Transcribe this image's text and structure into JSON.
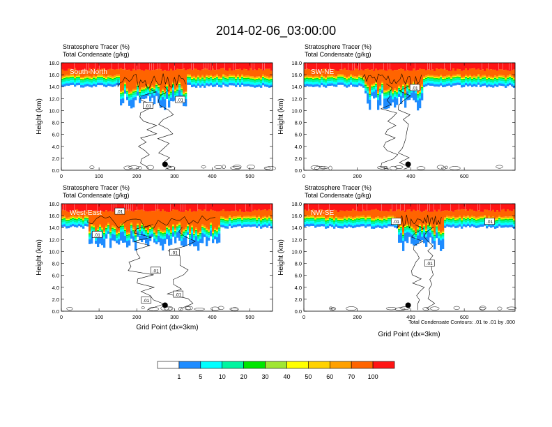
{
  "title": "2014-02-06_03:00:00",
  "label_line1": "Stratosphere Tracer   (%)",
  "label_line2": "Total Condensate   (g/kg)",
  "ylabel": "Height (km)",
  "xlabel": "Grid Point (dx=3km)",
  "contour_note": "Total Condensate Contours: .01 to .01 by .000",
  "contour_label": ".01",
  "y_ticks": [
    "0.0",
    "2.0",
    "4.0",
    "6.0",
    "8.0",
    "10.0",
    "12.0",
    "14.0",
    "16.0",
    "18.0"
  ],
  "colorbar": {
    "colors": [
      "#ffffff",
      "#1e8cff",
      "#00ffff",
      "#00f5a0",
      "#00e600",
      "#a0e632",
      "#ffff00",
      "#ffd200",
      "#ffa000",
      "#ff6400",
      "#ff1414"
    ],
    "labels": [
      "1",
      "5",
      "10",
      "20",
      "30",
      "40",
      "50",
      "60",
      "70",
      "100"
    ]
  },
  "chart_data": [
    {
      "type": "heatmap",
      "panel": "South-North",
      "title": "South-North",
      "xlim": [
        0,
        560
      ],
      "ylim": [
        0,
        18
      ],
      "x_ticks": [
        "0",
        "100",
        "200",
        "300",
        "400",
        "500"
      ],
      "tropopause_km": 15.5,
      "dip_x": [
        150,
        330
      ],
      "point_x": 275,
      "point_y_km": 1.0,
      "contour_labels": [
        {
          "x": 230,
          "y": 10.8
        },
        {
          "x": 315,
          "y": 11.8
        }
      ]
    },
    {
      "type": "heatmap",
      "panel": "SW-NE",
      "title": "SW-NE",
      "xlim": [
        0,
        790
      ],
      "ylim": [
        0,
        18
      ],
      "x_ticks": [
        "0",
        "200",
        "400",
        "600"
      ],
      "tropopause_km": 15.5,
      "dip_x": [
        220,
        440
      ],
      "point_x": 390,
      "point_y_km": 1.0,
      "contour_labels": [
        {
          "x": 415,
          "y": 13.8
        }
      ]
    },
    {
      "type": "heatmap",
      "panel": "West-East",
      "title": "West-East",
      "xlim": [
        0,
        560
      ],
      "ylim": [
        0,
        18
      ],
      "x_ticks": [
        "0",
        "100",
        "200",
        "300",
        "400",
        "500"
      ],
      "tropopause_km": 15.5,
      "dip_x": [
        70,
        420
      ],
      "point_x": 275,
      "point_y_km": 1.0,
      "contour_labels": [
        {
          "x": 155,
          "y": 16.7
        },
        {
          "x": 95,
          "y": 12.8
        },
        {
          "x": 300,
          "y": 9.8
        },
        {
          "x": 250,
          "y": 6.8
        },
        {
          "x": 225,
          "y": 1.8
        },
        {
          "x": 310,
          "y": 2.8
        }
      ]
    },
    {
      "type": "heatmap",
      "panel": "NW-SE",
      "title": "NW-SE",
      "xlim": [
        0,
        790
      ],
      "ylim": [
        0,
        18
      ],
      "x_ticks": [
        "0",
        "200",
        "400",
        "600"
      ],
      "tropopause_km": 15.5,
      "dip_x": [
        350,
        520
      ],
      "point_x": 390,
      "point_y_km": 1.0,
      "contour_labels": [
        {
          "x": 345,
          "y": 15.0
        },
        {
          "x": 695,
          "y": 15.0
        },
        {
          "x": 470,
          "y": 8.0
        }
      ]
    }
  ]
}
